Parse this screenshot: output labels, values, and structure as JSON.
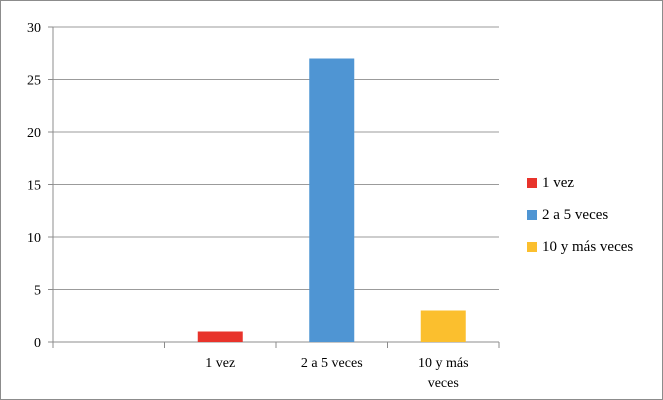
{
  "chart_data": {
    "type": "bar",
    "title": "",
    "xlabel": "",
    "ylabel": "",
    "categories": [
      "",
      "1 vez",
      "2 a 5 veces",
      "10 y más veces"
    ],
    "category_label_lines": [
      [
        ""
      ],
      [
        "1 vez"
      ],
      [
        "2 a 5 veces"
      ],
      [
        "10 y más",
        "veces"
      ]
    ],
    "values": [
      null,
      1,
      27,
      3
    ],
    "colors": [
      null,
      "#e8332b",
      "#4f95d3",
      "#fbbf2e"
    ],
    "ylim": [
      0,
      30
    ],
    "yticks": [
      "0",
      "5",
      "10",
      "15",
      "20",
      "25",
      "30"
    ],
    "grid": true,
    "legend_position": "right",
    "legend": [
      {
        "label": "1 vez",
        "color": "#e8332b"
      },
      {
        "label": "2 a 5 veces",
        "color": "#4f95d3"
      },
      {
        "label": "10 y más veces",
        "color": "#fbbf2e"
      }
    ]
  }
}
